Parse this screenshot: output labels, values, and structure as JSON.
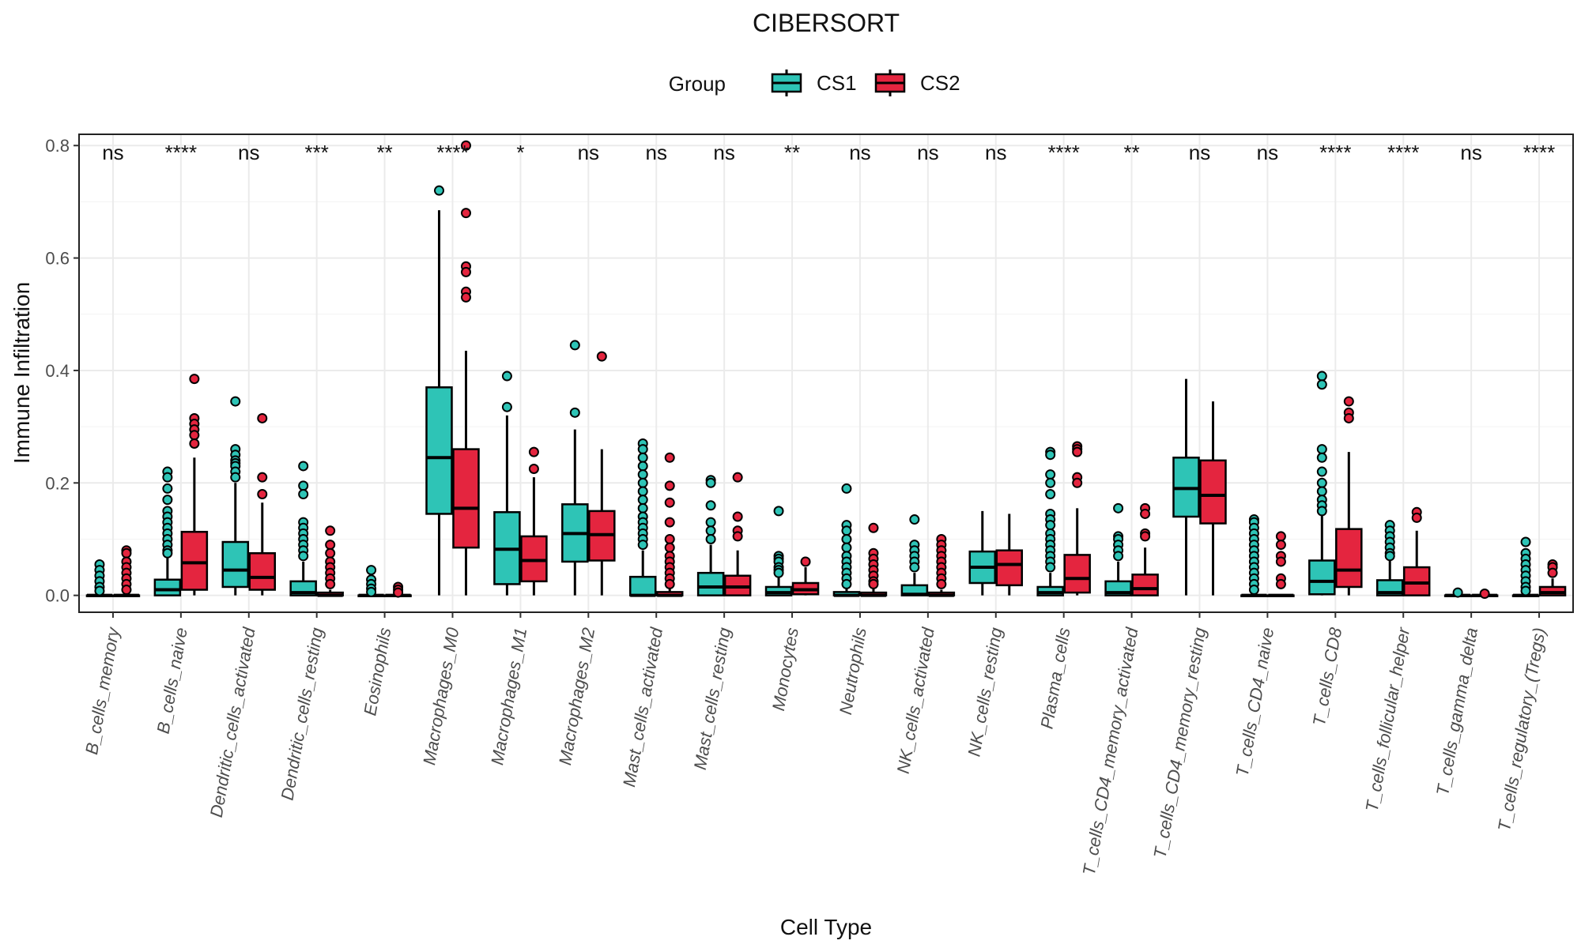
{
  "chart_data": {
    "type": "box",
    "title": "CIBERSORT",
    "xlabel": "Cell Type",
    "ylabel": "Immune Infiltration",
    "ylim": [
      -0.03,
      0.82
    ],
    "yticks": [
      "0.0",
      "0.2",
      "0.4",
      "0.6",
      "0.8"
    ],
    "grid": true,
    "legend": {
      "title": "Group",
      "position": "top",
      "entries": [
        "CS1",
        "CS2"
      ]
    },
    "colors": {
      "CS1": "#2ec4b6",
      "CS2": "#e4253f",
      "stroke": "#000000",
      "grid": "#ebebeb"
    },
    "categories": [
      "B_cells_memory",
      "B_cells_naive",
      "Dendritic_cells_activated",
      "Dendritic_cells_resting",
      "Eosinophils",
      "Macrophages_M0",
      "Macrophages_M1",
      "Macrophages_M2",
      "Mast_cells_activated",
      "Mast_cells_resting",
      "Monocytes",
      "Neutrophils",
      "NK_cells_activated",
      "NK_cells_resting",
      "Plasma_cells",
      "T_cells_CD4_memory_activated",
      "T_cells_CD4_memory_resting",
      "T_cells_CD4_naive",
      "T_cells_CD8",
      "T_cells_follicular_helper",
      "T_cells_gamma_delta",
      "T_cells_regulatory_(Tregs)"
    ],
    "significance": [
      "ns",
      "****",
      "ns",
      "***",
      "**",
      "****",
      "*",
      "ns",
      "ns",
      "ns",
      "**",
      "ns",
      "ns",
      "ns",
      "****",
      "**",
      "ns",
      "ns",
      "****",
      "****",
      "ns",
      "****"
    ],
    "series": [
      {
        "name": "CS1",
        "boxes": [
          {
            "min": 0,
            "q1": 0,
            "median": 0,
            "q3": 0,
            "max": 0,
            "outliers": [
              0.055,
              0.045,
              0.035,
              0.025,
              0.015,
              0.008
            ]
          },
          {
            "min": 0,
            "q1": 0,
            "median": 0.01,
            "q3": 0.028,
            "max": 0.07,
            "outliers": [
              0.22,
              0.21,
              0.19,
              0.17,
              0.15,
              0.14,
              0.13,
              0.12,
              0.11,
              0.1,
              0.09,
              0.08,
              0.075
            ]
          },
          {
            "min": 0,
            "q1": 0.015,
            "median": 0.045,
            "q3": 0.095,
            "max": 0.2,
            "outliers": [
              0.345,
              0.26,
              0.25,
              0.24,
              0.235,
              0.23,
              0.22,
              0.21
            ]
          },
          {
            "min": 0,
            "q1": 0,
            "median": 0.005,
            "q3": 0.025,
            "max": 0.06,
            "outliers": [
              0.23,
              0.195,
              0.18,
              0.13,
              0.12,
              0.11,
              0.1,
              0.09,
              0.08,
              0.07
            ]
          },
          {
            "min": 0,
            "q1": 0,
            "median": 0,
            "q3": 0,
            "max": 0,
            "outliers": [
              0.045,
              0.028,
              0.02,
              0.012,
              0.006
            ]
          },
          {
            "min": 0,
            "q1": 0.145,
            "median": 0.245,
            "q3": 0.37,
            "max": 0.685,
            "outliers": [
              0.72
            ]
          },
          {
            "min": 0,
            "q1": 0.02,
            "median": 0.082,
            "q3": 0.148,
            "max": 0.32,
            "outliers": [
              0.39,
              0.335
            ]
          },
          {
            "min": 0,
            "q1": 0.06,
            "median": 0.11,
            "q3": 0.162,
            "max": 0.295,
            "outliers": [
              0.445,
              0.325
            ]
          },
          {
            "min": 0,
            "q1": 0,
            "median": 0,
            "q3": 0.033,
            "max": 0.08,
            "outliers": [
              0.27,
              0.26,
              0.245,
              0.23,
              0.215,
              0.2,
              0.185,
              0.17,
              0.155,
              0.14,
              0.13,
              0.12,
              0.11,
              0.1,
              0.09
            ]
          },
          {
            "min": 0,
            "q1": 0,
            "median": 0.015,
            "q3": 0.04,
            "max": 0.09,
            "outliers": [
              0.205,
              0.2,
              0.16,
              0.13,
              0.115,
              0.1
            ]
          },
          {
            "min": 0,
            "q1": 0,
            "median": 0.005,
            "q3": 0.015,
            "max": 0.035,
            "outliers": [
              0.15,
              0.07,
              0.065,
              0.06,
              0.05,
              0.045,
              0.04
            ]
          },
          {
            "min": 0,
            "q1": 0,
            "median": 0,
            "q3": 0.006,
            "max": 0.015,
            "outliers": [
              0.19,
              0.125,
              0.115,
              0.1,
              0.085,
              0.07,
              0.06,
              0.05,
              0.04,
              0.03,
              0.02
            ]
          },
          {
            "min": 0,
            "q1": 0,
            "median": 0.002,
            "q3": 0.018,
            "max": 0.04,
            "outliers": [
              0.135,
              0.09,
              0.08,
              0.07,
              0.06,
              0.05
            ]
          },
          {
            "min": 0,
            "q1": 0.022,
            "median": 0.05,
            "q3": 0.078,
            "max": 0.15,
            "outliers": []
          },
          {
            "min": 0,
            "q1": 0,
            "median": 0.005,
            "q3": 0.015,
            "max": 0.04,
            "outliers": [
              0.255,
              0.25,
              0.215,
              0.2,
              0.18,
              0.145,
              0.135,
              0.125,
              0.11,
              0.1,
              0.09,
              0.08,
              0.07,
              0.06,
              0.05
            ]
          },
          {
            "min": 0,
            "q1": 0,
            "median": 0.005,
            "q3": 0.025,
            "max": 0.06,
            "outliers": [
              0.155,
              0.105,
              0.1,
              0.09,
              0.08,
              0.07
            ]
          },
          {
            "min": 0,
            "q1": 0.14,
            "median": 0.19,
            "q3": 0.245,
            "max": 0.385,
            "outliers": []
          },
          {
            "min": 0,
            "q1": 0,
            "median": 0,
            "q3": 0,
            "max": 0,
            "outliers": [
              0.135,
              0.13,
              0.12,
              0.11,
              0.1,
              0.09,
              0.08,
              0.07,
              0.06,
              0.05,
              0.04,
              0.03,
              0.02,
              0.01
            ]
          },
          {
            "min": 0,
            "q1": 0.002,
            "median": 0.025,
            "q3": 0.062,
            "max": 0.145,
            "outliers": [
              0.39,
              0.375,
              0.26,
              0.245,
              0.22,
              0.2,
              0.185,
              0.17,
              0.16,
              0.15
            ]
          },
          {
            "min": 0,
            "q1": 0,
            "median": 0.005,
            "q3": 0.027,
            "max": 0.065,
            "outliers": [
              0.125,
              0.115,
              0.105,
              0.095,
              0.085,
              0.075,
              0.07
            ]
          },
          {
            "min": 0,
            "q1": 0,
            "median": 0,
            "q3": 0,
            "max": 0,
            "outliers": [
              0.005
            ]
          },
          {
            "min": 0,
            "q1": 0,
            "median": 0,
            "q3": 0,
            "max": 0,
            "outliers": [
              0.095,
              0.075,
              0.065,
              0.055,
              0.045,
              0.035,
              0.025,
              0.015,
              0.008
            ]
          }
        ]
      },
      {
        "name": "CS2",
        "boxes": [
          {
            "min": 0,
            "q1": 0,
            "median": 0,
            "q3": 0,
            "max": 0,
            "outliers": [
              0.08,
              0.075,
              0.06,
              0.05,
              0.04,
              0.03,
              0.02,
              0.01
            ]
          },
          {
            "min": 0,
            "q1": 0.01,
            "median": 0.058,
            "q3": 0.113,
            "max": 0.245,
            "outliers": [
              0.385,
              0.315,
              0.305,
              0.295,
              0.285,
              0.27
            ]
          },
          {
            "min": 0,
            "q1": 0.01,
            "median": 0.032,
            "q3": 0.075,
            "max": 0.165,
            "outliers": [
              0.315,
              0.21,
              0.18
            ]
          },
          {
            "min": 0,
            "q1": 0,
            "median": 0,
            "q3": 0.005,
            "max": 0.01,
            "outliers": [
              0.115,
              0.09,
              0.075,
              0.06,
              0.05,
              0.04,
              0.03,
              0.02
            ]
          },
          {
            "min": 0,
            "q1": 0,
            "median": 0,
            "q3": 0,
            "max": 0,
            "outliers": [
              0.015,
              0.01,
              0.005
            ]
          },
          {
            "min": 0,
            "q1": 0.085,
            "median": 0.155,
            "q3": 0.26,
            "max": 0.435,
            "outliers": [
              0.8,
              0.68,
              0.585,
              0.575,
              0.54,
              0.53
            ]
          },
          {
            "min": 0,
            "q1": 0.025,
            "median": 0.062,
            "q3": 0.105,
            "max": 0.21,
            "outliers": [
              0.255,
              0.225
            ]
          },
          {
            "min": 0,
            "q1": 0.062,
            "median": 0.108,
            "q3": 0.15,
            "max": 0.26,
            "outliers": [
              0.425
            ]
          },
          {
            "min": 0,
            "q1": 0,
            "median": 0,
            "q3": 0.006,
            "max": 0.012,
            "outliers": [
              0.245,
              0.195,
              0.165,
              0.13,
              0.1,
              0.085,
              0.07,
              0.06,
              0.05,
              0.04,
              0.03,
              0.02
            ]
          },
          {
            "min": 0,
            "q1": 0,
            "median": 0.015,
            "q3": 0.035,
            "max": 0.08,
            "outliers": [
              0.21,
              0.14,
              0.115,
              0.105
            ]
          },
          {
            "min": 0,
            "q1": 0.002,
            "median": 0.01,
            "q3": 0.022,
            "max": 0.05,
            "outliers": [
              0.06
            ]
          },
          {
            "min": 0,
            "q1": 0,
            "median": 0,
            "q3": 0.005,
            "max": 0.012,
            "outliers": [
              0.12,
              0.075,
              0.065,
              0.055,
              0.045,
              0.035,
              0.025,
              0.02
            ]
          },
          {
            "min": 0,
            "q1": 0,
            "median": 0,
            "q3": 0.005,
            "max": 0.01,
            "outliers": [
              0.1,
              0.09,
              0.08,
              0.07,
              0.06,
              0.05,
              0.04,
              0.03,
              0.02
            ]
          },
          {
            "min": 0,
            "q1": 0.018,
            "median": 0.055,
            "q3": 0.08,
            "max": 0.145,
            "outliers": []
          },
          {
            "min": 0,
            "q1": 0.005,
            "median": 0.03,
            "q3": 0.072,
            "max": 0.155,
            "outliers": [
              0.265,
              0.26,
              0.255,
              0.21,
              0.2
            ]
          },
          {
            "min": 0,
            "q1": 0,
            "median": 0.012,
            "q3": 0.037,
            "max": 0.085,
            "outliers": [
              0.155,
              0.145,
              0.11,
              0.105
            ]
          },
          {
            "min": 0,
            "q1": 0.128,
            "median": 0.178,
            "q3": 0.24,
            "max": 0.345,
            "outliers": []
          },
          {
            "min": 0,
            "q1": 0,
            "median": 0,
            "q3": 0,
            "max": 0,
            "outliers": [
              0.105,
              0.09,
              0.07,
              0.06,
              0.03,
              0.02
            ]
          },
          {
            "min": 0,
            "q1": 0.015,
            "median": 0.045,
            "q3": 0.118,
            "max": 0.255,
            "outliers": [
              0.345,
              0.325,
              0.315
            ]
          },
          {
            "min": 0,
            "q1": 0,
            "median": 0.022,
            "q3": 0.05,
            "max": 0.115,
            "outliers": [
              0.148,
              0.138
            ]
          },
          {
            "min": 0,
            "q1": 0,
            "median": 0,
            "q3": 0,
            "max": 0,
            "outliers": [
              0.003
            ]
          },
          {
            "min": 0,
            "q1": 0,
            "median": 0.005,
            "q3": 0.015,
            "max": 0.03,
            "outliers": [
              0.055,
              0.05,
              0.04
            ]
          }
        ]
      }
    ]
  }
}
